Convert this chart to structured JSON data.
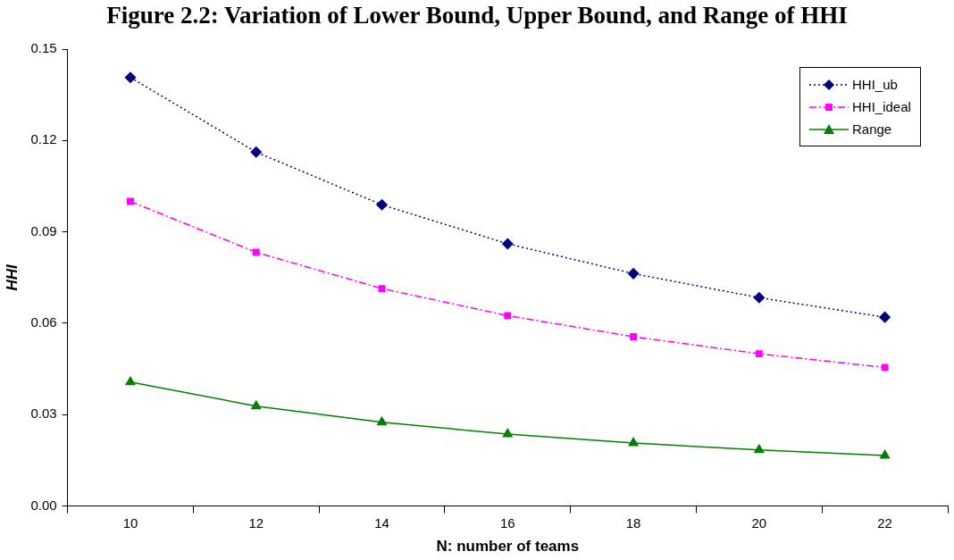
{
  "chart_data": {
    "type": "line",
    "title": "Figure 2.2: Variation of Lower Bound, Upper Bound, and Range of HHI",
    "xlabel": "N: number of teams",
    "ylabel": "HHI",
    "categories": [
      "10",
      "12",
      "14",
      "16",
      "18",
      "20",
      "22"
    ],
    "series": [
      {
        "name": "HHI_ub",
        "color": "#000080",
        "marker": "diamond",
        "line_style": "dotted",
        "values": [
          0.1407,
          0.1162,
          0.0989,
          0.0861,
          0.0763,
          0.0684,
          0.062
        ]
      },
      {
        "name": "HHI_ideal",
        "color": "#ff00ff",
        "marker": "square",
        "line_style": "dashed",
        "values": [
          0.1,
          0.0833,
          0.0714,
          0.0625,
          0.0556,
          0.05,
          0.0455
        ]
      },
      {
        "name": "Range",
        "color": "#008000",
        "marker": "triangle",
        "line_style": "solid",
        "values": [
          0.0407,
          0.0328,
          0.0275,
          0.0236,
          0.0207,
          0.0184,
          0.0166
        ]
      }
    ],
    "ylim": [
      0,
      0.15
    ],
    "yticks": [
      {
        "value": 0,
        "label": "0.00"
      },
      0.03,
      0.06,
      0.09,
      0.12,
      0.15
    ],
    "grid": false,
    "legend": "top right"
  }
}
